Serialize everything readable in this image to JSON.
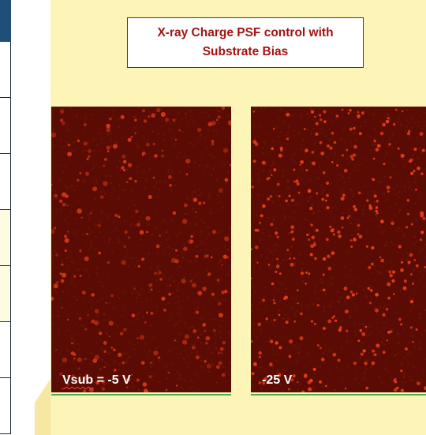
{
  "slide": {
    "title": "X-ray Charge PSF control with\nSubstrate Bias",
    "colors": {
      "panel_bg": "#fdf4b8",
      "title_text": "#a31212",
      "image_bg": "#5a0c04",
      "spot": "#e8401a",
      "table_header": "#1f4e79"
    }
  },
  "images": [
    {
      "label_prefix": "Vsub",
      "label_rest": " = -5 V",
      "spots": "diffuse"
    },
    {
      "label_prefix": "",
      "label_rest": "-25 V",
      "spots": "sharp"
    }
  ]
}
